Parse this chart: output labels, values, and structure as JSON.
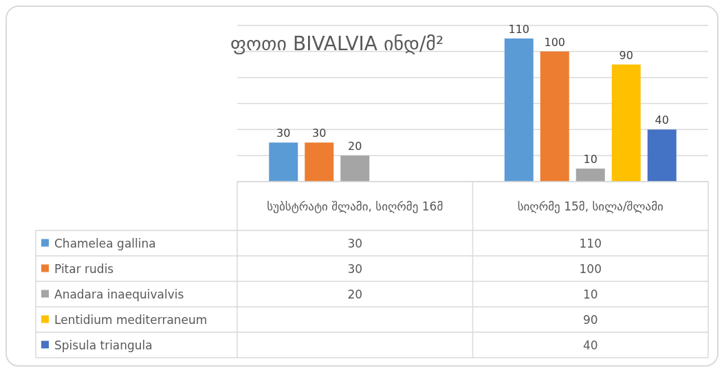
{
  "chart_data": {
    "type": "bar",
    "title": "ფოთი BIVALVIA ინდ/მ²",
    "categories": [
      "სუბსტრატი შლამი, სიღრმე 16მ",
      "სიღრმე 15მ, სილა/შლამი"
    ],
    "series": [
      {
        "name": "Chamelea gallina",
        "color": "#5b9bd5",
        "values": [
          30,
          110
        ],
        "value_labels": [
          "30",
          "110"
        ]
      },
      {
        "name": "Pitar rudis",
        "color": "#ed7d31",
        "values": [
          30,
          100
        ],
        "value_labels": [
          "30",
          "100"
        ]
      },
      {
        "name": "Anadara inaequivalvis",
        "color": "#a5a5a5",
        "values": [
          20,
          10
        ],
        "value_labels": [
          "20",
          "10"
        ]
      },
      {
        "name": "Lentidium mediterraneum",
        "color": "#ffc000",
        "values": [
          null,
          90
        ],
        "value_labels": [
          null,
          "90"
        ]
      },
      {
        "name": "Spisula triangula",
        "color": "#4472c4",
        "values": [
          null,
          40
        ],
        "value_labels": [
          null,
          "40"
        ]
      }
    ],
    "ylim": [
      0,
      120
    ],
    "yticks": [
      {
        "value": 0,
        "label": null
      },
      {
        "value": 20,
        "label": null
      },
      {
        "value": 40,
        "label": null
      },
      {
        "value": 60,
        "label": null
      },
      {
        "value": 80,
        "label": null
      },
      {
        "value": 100,
        "label": null
      },
      {
        "value": 120,
        "label": null
      }
    ],
    "annotations": [
      "30",
      "110",
      "30",
      "100",
      "20",
      "10",
      "90",
      "40"
    ],
    "tick_labels": "x",
    "grid": "y",
    "data_labels": true,
    "legend": "bottom left"
  }
}
